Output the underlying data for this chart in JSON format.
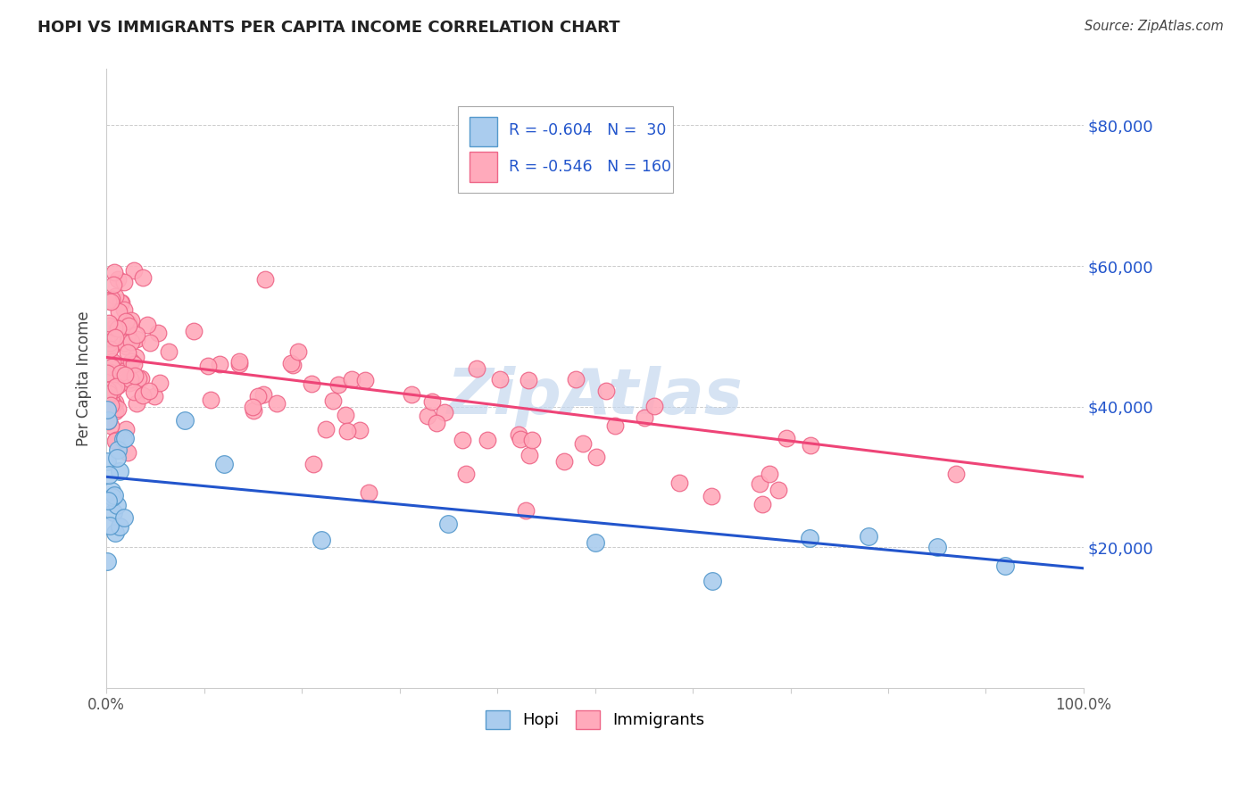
{
  "title": "HOPI VS IMMIGRANTS PER CAPITA INCOME CORRELATION CHART",
  "source": "Source: ZipAtlas.com",
  "ylabel": "Per Capita Income",
  "xlim": [
    0.0,
    1.0
  ],
  "ylim": [
    0,
    88000
  ],
  "xticks": [
    0.0,
    0.1,
    0.2,
    0.3,
    0.4,
    0.5,
    0.6,
    0.7,
    0.8,
    0.9,
    1.0
  ],
  "ytick_positions": [
    0,
    20000,
    40000,
    60000,
    80000
  ],
  "ytick_labels": [
    "",
    "$20,000",
    "$40,000",
    "$60,000",
    "$80,000"
  ],
  "hopi_fill": "#aaccee",
  "hopi_edge": "#5599cc",
  "imm_fill": "#ffaabb",
  "imm_edge": "#ee6688",
  "trend_blue": "#2255cc",
  "trend_pink": "#ee4477",
  "legend_text_color": "#2255cc",
  "watermark_color": "#c5d8ee",
  "watermark": "ZipAtlas",
  "grid_color": "#cccccc",
  "title_color": "#222222",
  "source_color": "#444444",
  "ylabel_color": "#444444",
  "tick_label_color": "#555555",
  "right_tick_color": "#2255cc"
}
